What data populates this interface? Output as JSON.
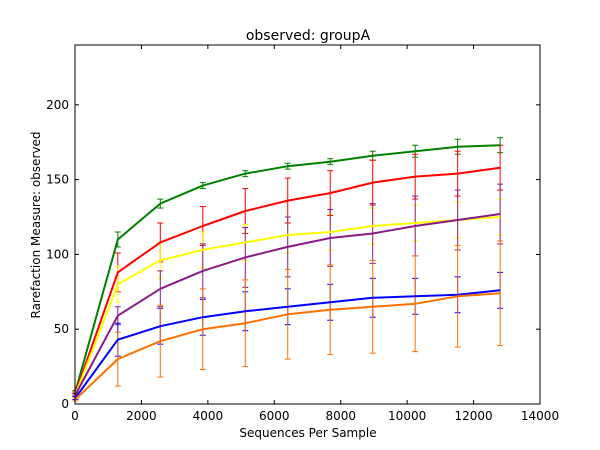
{
  "chart_data": {
    "type": "line",
    "title": "observed: groupA",
    "xlabel": "Sequences Per Sample",
    "ylabel": "Rarefaction Measure: observed",
    "xlim": [
      0,
      14000
    ],
    "ylim": [
      0,
      240
    ],
    "xticks": [
      0,
      2000,
      4000,
      6000,
      8000,
      10000,
      12000,
      14000
    ],
    "yticks": [
      0,
      50,
      100,
      150,
      200
    ],
    "xtick_labels": [
      "0",
      "2000",
      "4000",
      "6000",
      "8000",
      "10000",
      "12000",
      "14000"
    ],
    "ytick_labels": [
      "0",
      "50",
      "100",
      "150",
      "200"
    ],
    "grid": false,
    "legend": "none",
    "x": [
      10,
      1289,
      2568,
      3847,
      5126,
      6405,
      7684,
      8963,
      10242,
      11521,
      12800
    ],
    "series": [
      {
        "color": "#008000",
        "values": [
          8,
          110,
          134,
          146,
          154,
          159,
          162,
          166,
          169,
          172,
          173
        ],
        "err": [
          1,
          5,
          3,
          2,
          2,
          2,
          2,
          3,
          4,
          5,
          5
        ]
      },
      {
        "color": "#ff0000",
        "values": [
          7,
          88,
          108,
          119,
          129,
          136,
          141,
          148,
          152,
          154,
          158
        ],
        "err": [
          1,
          13,
          13,
          13,
          15,
          15,
          15,
          15,
          15,
          15,
          15
        ]
      },
      {
        "color": "#ffff00",
        "values": [
          6,
          80,
          96,
          103,
          108,
          113,
          115,
          119,
          121,
          123,
          125
        ],
        "err": [
          1,
          12,
          12,
          12,
          12,
          12,
          12,
          12,
          12,
          12,
          12
        ]
      },
      {
        "color": "#8b1a89",
        "values": [
          6,
          59,
          77,
          89,
          98,
          105,
          111,
          114,
          119,
          123,
          127
        ],
        "err": [
          1,
          6,
          12,
          18,
          20,
          20,
          19,
          20,
          20,
          20,
          20
        ]
      },
      {
        "color": "#0000ff",
        "values": [
          4,
          43,
          52,
          58,
          62,
          65,
          68,
          71,
          72,
          73,
          76
        ],
        "err": [
          1,
          11,
          12,
          12,
          13,
          12,
          12,
          13,
          12,
          12,
          12
        ]
      },
      {
        "color": "#ff7000",
        "values": [
          3,
          30,
          42,
          50,
          54,
          60,
          63,
          65,
          67,
          72,
          74
        ],
        "err": [
          1,
          18,
          24,
          27,
          29,
          30,
          30,
          31,
          32,
          34,
          35
        ]
      }
    ]
  }
}
